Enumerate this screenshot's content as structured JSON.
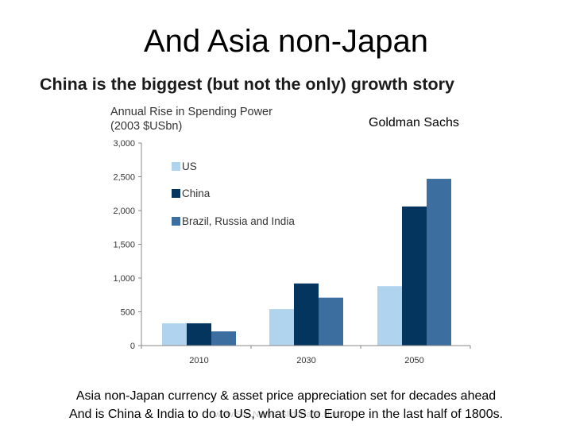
{
  "slide": {
    "title": "And Asia non-Japan",
    "source": "Goldman Sachs",
    "footer_line1": "Asia non-Japan currency & asset price appreciation set for decades ahead",
    "footer_line2": "And is China & India to do to US, what US to Europe in the last half of 1800s.",
    "watermark": "www.Site.Name/ SlidePage.Name"
  },
  "chart_data": {
    "type": "bar",
    "title": "China is the biggest (but not the only) growth story",
    "ylabel_line1": "Annual Rise in Spending Power",
    "ylabel_line2": "(2003 $USbn)",
    "categories": [
      "2010",
      "2030",
      "2050"
    ],
    "series": [
      {
        "name": "US",
        "color": "#b0d4ee",
        "values": [
          330,
          540,
          880
        ]
      },
      {
        "name": "China",
        "color": "#03355f",
        "values": [
          330,
          920,
          2060
        ]
      },
      {
        "name": "Brazil, Russia and India",
        "color": "#3c6ea0",
        "values": [
          210,
          710,
          2470
        ]
      }
    ],
    "yticks": [
      "0",
      "500",
      "1,000",
      "1,500",
      "2,000",
      "2,500",
      "3,000"
    ],
    "ylim": [
      0,
      3000
    ],
    "grid": false,
    "legend_position": "top-left"
  }
}
